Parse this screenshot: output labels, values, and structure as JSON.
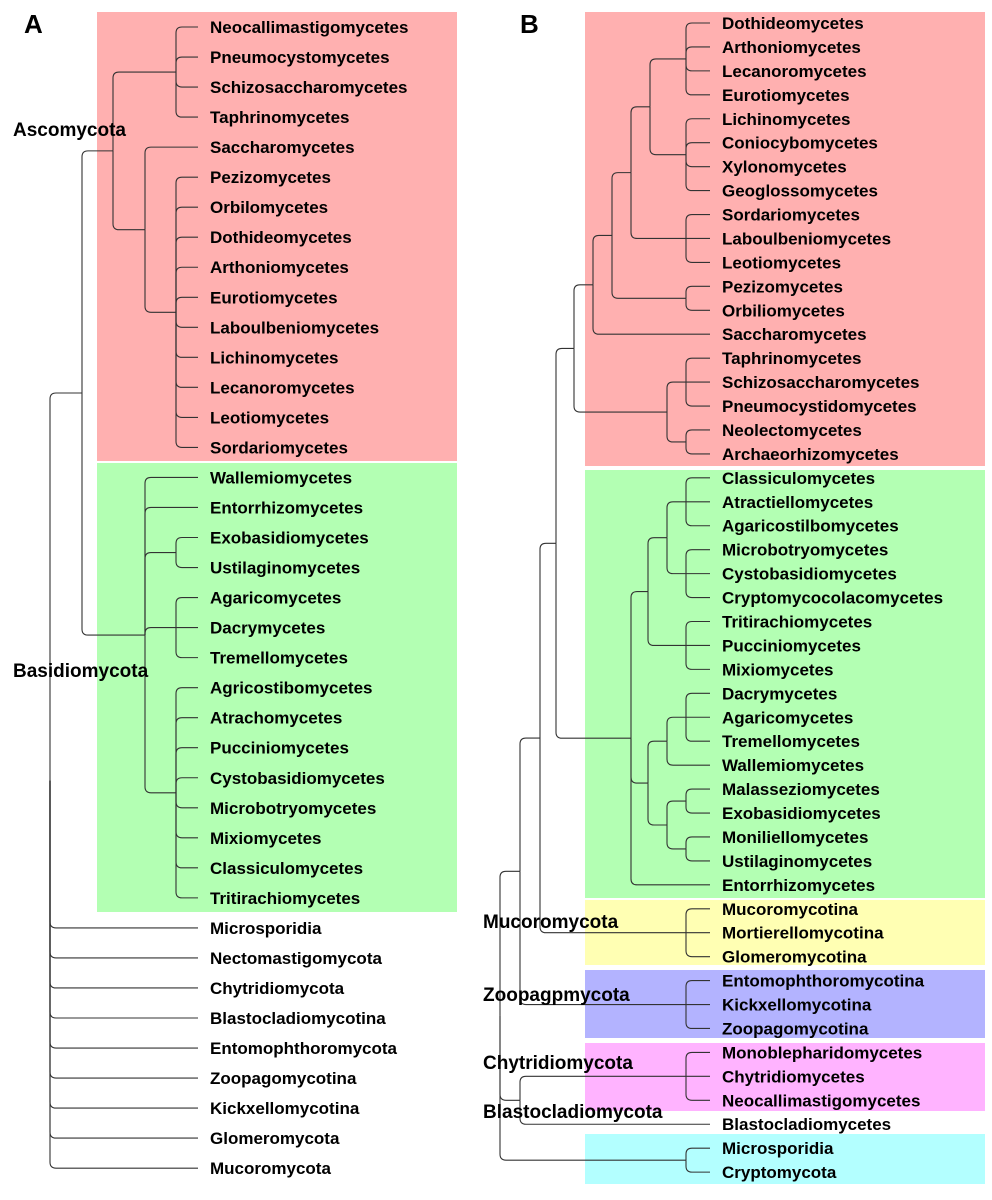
{
  "panels": [
    {
      "letter": "A",
      "groups": [
        {
          "name": "Ascomycota",
          "color": "#ffb0b0"
        },
        {
          "name": "Basidiomycota",
          "color": "#b3ffb3"
        }
      ],
      "taxa": [
        "Neocallimastigomycetes",
        "Pneumocystomycetes",
        "Schizosaccharomycetes",
        "Taphrinomycetes",
        "Saccharomycetes",
        "Pezizomycetes",
        "Orbilomycetes",
        "Dothideomycetes",
        "Arthoniomycetes",
        "Eurotiomycetes",
        "Laboulbeniomycetes",
        "Lichinomycetes",
        "Lecanoromycetes",
        "Leotiomycetes",
        "Sordariomycetes",
        "Wallemiomycetes",
        "Entorrhizomycetes",
        "Exobasidiomycetes",
        "Ustilaginomycetes",
        "Agaricomycetes",
        "Dacrymycetes",
        "Tremellomycetes",
        "Agricostibomycetes",
        "Atrachomycetes",
        "Pucciniomycetes",
        "Cystobasidiomycetes",
        "Microbotryomycetes",
        "Mixiomycetes",
        "Classiculomycetes",
        "Tritirachiomycetes",
        "Microsporidia",
        "Nectomastigomycota",
        "Chytridiomycota",
        "Blastocladiomycotina",
        "Entomophthoromycota",
        "Zoopagomycotina",
        "Kickxellomycotina",
        "Glomeromycota",
        "Mucoromycota"
      ]
    },
    {
      "letter": "B",
      "groups": [
        {
          "name": "",
          "color": "#ffb0b0"
        },
        {
          "name": "",
          "color": "#b3ffb3"
        },
        {
          "name": "Mucoromycota",
          "color": "#ffffb3"
        },
        {
          "name": "Zoopagpmycota",
          "color": "#b3b3ff"
        },
        {
          "name": "Chytridiomycota",
          "color": "#ffb3ff"
        },
        {
          "name": "Blastocladiomycota",
          "color": "#ffffff"
        },
        {
          "name": "",
          "color": "#b3ffff"
        }
      ],
      "taxa": [
        "Dothideomycetes",
        "Arthoniomycetes",
        "Lecanoromycetes",
        "Eurotiomycetes",
        "Lichinomycetes",
        "Coniocybomycetes",
        "Xylonomycetes",
        "Geoglossomycetes",
        "Sordariomycetes",
        "Laboulbeniomycetes",
        "Leotiomycetes",
        "Pezizomycetes",
        "Orbiliomycetes",
        "Saccharomycetes",
        "Taphrinomycetes",
        "Schizosaccharomycetes",
        "Pneumocystidomycetes",
        "Neolectomycetes",
        "Archaeorhizomycetes",
        "Classiculomycetes",
        "Atractiellomycetes",
        "Agaricostilbomycetes",
        "Microbotryomycetes",
        "Cystobasidiomycetes",
        "Cryptomycocolacomycetes",
        "Tritirachiomycetes",
        "Pucciniomycetes",
        "Mixiomycetes",
        "Dacrymycetes",
        "Agaricomycetes",
        "Tremellomycetes",
        "Wallemiomycetes",
        "Malasseziomycetes",
        "Exobasidiomycetes",
        "Moniliellomycetes",
        "Ustilaginomycetes",
        "Entorrhizomycetes",
        "Mucoromycotina",
        "Mortierellomycotina",
        "Glomeromycotina",
        "Entomophthoromycotina",
        "Kickxellomycotina",
        "Zoopagomycotina",
        "Monoblepharidomycetes",
        "Chytridiomycetes",
        "Neocallimastigomycetes",
        "Blastocladiomycetes",
        "Microsporidia",
        "Cryptomycota"
      ]
    }
  ]
}
